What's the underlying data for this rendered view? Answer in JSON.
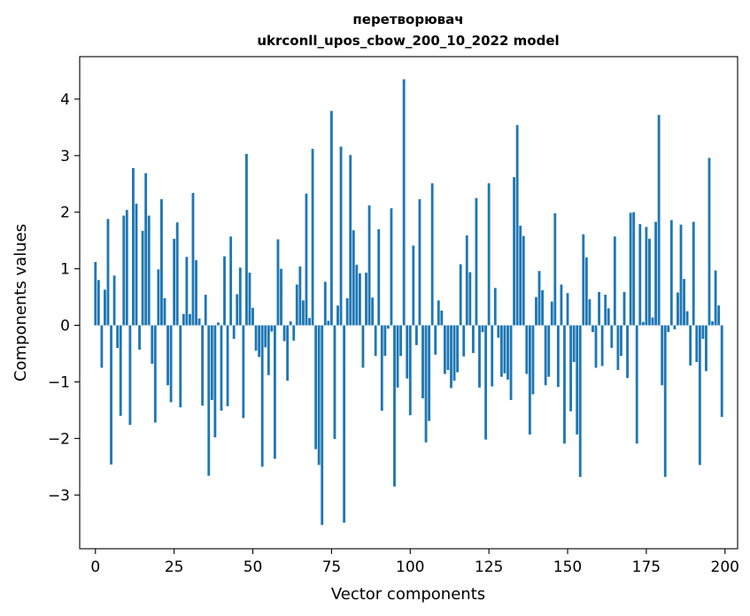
{
  "chart_data": {
    "type": "bar",
    "title_line1": "перетворювач",
    "title_line2": "ukrconll_upos_cbow_200_10_2022 model",
    "xlabel": "Vector components",
    "ylabel": "Components values",
    "xlim": [
      -5,
      204
    ],
    "ylim": [
      -3.95,
      4.75
    ],
    "xticks": [
      0,
      25,
      50,
      75,
      100,
      125,
      150,
      175,
      200
    ],
    "xtick_labels": [
      "0",
      "25",
      "50",
      "75",
      "100",
      "125",
      "150",
      "175",
      "200"
    ],
    "yticks": [
      -3,
      -2,
      -1,
      0,
      1,
      2,
      3,
      4
    ],
    "ytick_labels": [
      "−3",
      "−2",
      "−1",
      "0",
      "1",
      "2",
      "3",
      "4"
    ],
    "bar_color": "#1f77b4",
    "grid": false,
    "values": [
      1.12,
      0.8,
      -0.75,
      0.63,
      1.88,
      -2.46,
      0.88,
      -0.4,
      -1.6,
      1.94,
      2.04,
      -1.76,
      2.78,
      2.15,
      -0.43,
      1.67,
      2.69,
      1.94,
      -0.68,
      -1.72,
      0.99,
      2.23,
      0.48,
      -1.06,
      -1.36,
      1.53,
      1.82,
      -1.45,
      0.2,
      1.21,
      0.2,
      2.34,
      1.15,
      0.12,
      -1.42,
      0.54,
      -2.66,
      -1.32,
      -1.98,
      0.05,
      -1.51,
      1.22,
      -1.43,
      1.57,
      -0.24,
      0.55,
      1.02,
      -1.64,
      3.03,
      0.93,
      0.31,
      -0.45,
      -0.56,
      -2.5,
      -0.39,
      -0.88,
      -0.11,
      -2.36,
      1.52,
      1.0,
      -0.28,
      -0.98,
      0.07,
      -0.27,
      0.72,
      1.04,
      0.44,
      2.33,
      0.13,
      3.12,
      -2.19,
      -2.47,
      -3.53,
      0.77,
      0.08,
      3.79,
      -2.01,
      0.35,
      3.16,
      -3.49,
      0.48,
      3.01,
      1.68,
      1.07,
      0.92,
      -0.75,
      0.93,
      2.12,
      0.49,
      -0.54,
      1.7,
      -1.51,
      -0.54,
      -0.06,
      2.07,
      -2.85,
      -1.1,
      -0.54,
      4.35,
      -0.94,
      -1.59,
      1.41,
      -0.35,
      2.23,
      -1.29,
      -2.07,
      -1.69,
      2.51,
      -0.52,
      0.44,
      0.26,
      -0.86,
      -0.79,
      -1.11,
      -0.98,
      -0.83,
      1.08,
      -0.55,
      1.59,
      0.94,
      -0.49,
      2.25,
      -1.1,
      -0.12,
      -2.02,
      2.51,
      -1.08,
      0.66,
      -0.22,
      -0.91,
      -0.85,
      -0.96,
      -1.32,
      2.62,
      3.54,
      1.76,
      1.58,
      -0.86,
      -1.93,
      -1.22,
      0.5,
      0.96,
      0.62,
      -1.06,
      -0.91,
      0.42,
      1.98,
      -1.09,
      0.72,
      -2.09,
      0.57,
      -1.52,
      -0.65,
      -1.93,
      -2.68,
      1.61,
      1.2,
      0.46,
      -0.12,
      -0.75,
      0.59,
      -0.72,
      0.54,
      0.3,
      -0.4,
      1.57,
      -0.79,
      -0.54,
      0.59,
      -0.93,
      1.99,
      2.0,
      -2.09,
      1.79,
      0.06,
      1.74,
      1.53,
      0.14,
      1.83,
      3.72,
      -1.06,
      -2.68,
      -0.12,
      1.86,
      -0.07,
      0.58,
      1.78,
      0.82,
      0.25,
      -0.71,
      1.83,
      -0.65,
      -2.47,
      -0.24,
      -0.81,
      2.96,
      0.07,
      0.97,
      0.35,
      -1.62
    ]
  }
}
